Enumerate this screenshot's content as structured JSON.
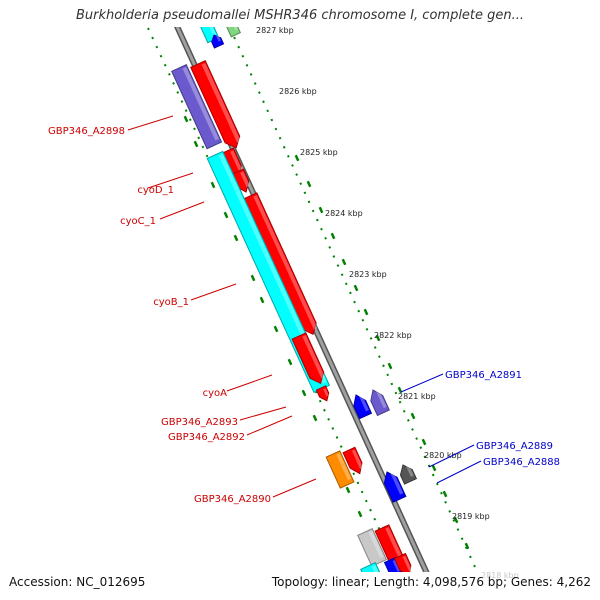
{
  "title": "Burkholderia pseudomallei MSHR346 chromosome I, complete gen...",
  "footer": {
    "accession": "Accession: NC_012695",
    "summary": "Topology: linear; Length: 4,098,576 bp; Genes: 4,262"
  },
  "scale_ticks": [
    "2827 kbp",
    "2826 kbp",
    "2825 kbp",
    "2824 kbp",
    "2823 kbp",
    "2822 kbp",
    "2821 kbp",
    "2820 kbp",
    "2819 kbp",
    "2818 kbp"
  ],
  "gene_labels_left": [
    "GBP346_A2898",
    "cyoD_1",
    "cyoC_1",
    "cyoB_1",
    "cyoA",
    "GBP346_A2893",
    "GBP346_A2892",
    "GBP346_A2890"
  ],
  "gene_labels_right": [
    "GBP346_A2891",
    "GBP346_A2889",
    "GBP346_A2888"
  ],
  "colors": {
    "left_label": "#cc0000",
    "right_label": "#0000cc",
    "forward_gene": "#ff0000",
    "cyo_subunit": "#00ffff",
    "reverse_gene": "#0000ff",
    "purple_gene": "#6a5acd",
    "dark_gene": "#555555",
    "orange_gene": "#ff8c00",
    "backbone": "#888888",
    "scale_dots": "#008000"
  }
}
